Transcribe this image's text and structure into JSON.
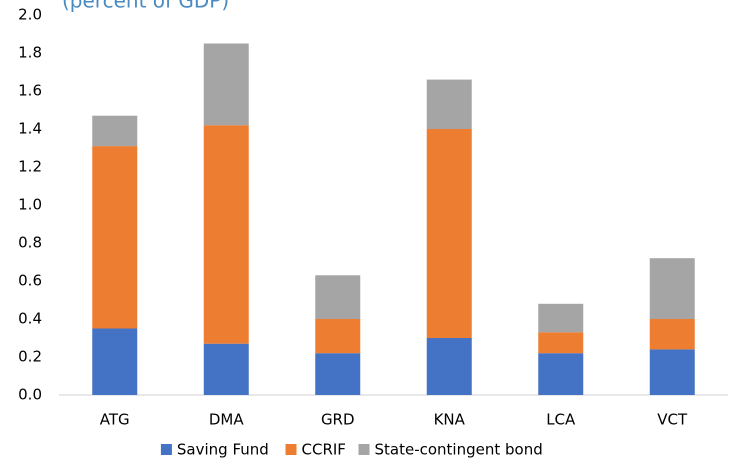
{
  "chart_data": {
    "type": "stacked_bar",
    "title": "(percent of GDP)",
    "categories": [
      "ATG",
      "DMA",
      "GRD",
      "KNA",
      "LCA",
      "VCT"
    ],
    "series": [
      {
        "name": "Saving Fund",
        "color": "#4472c4",
        "values": [
          0.35,
          0.27,
          0.22,
          0.3,
          0.22,
          0.24
        ]
      },
      {
        "name": "CCRIF",
        "color": "#ed7d31",
        "values": [
          0.96,
          1.15,
          0.18,
          1.1,
          0.11,
          0.16
        ]
      },
      {
        "name": "State-contingent bond",
        "color": "#a5a5a5",
        "values": [
          0.16,
          0.43,
          0.23,
          0.26,
          0.15,
          0.32
        ]
      }
    ],
    "ylim": [
      0,
      2
    ],
    "yticks": [
      {
        "value": 0,
        "label": "0.0"
      },
      0.2,
      0.4,
      0.6,
      0.8,
      {
        "value": 1,
        "label": "1.0"
      },
      1.2,
      1.4,
      1.6,
      1.8,
      {
        "value": 2,
        "label": "2.0"
      }
    ],
    "legend": "bottom"
  }
}
